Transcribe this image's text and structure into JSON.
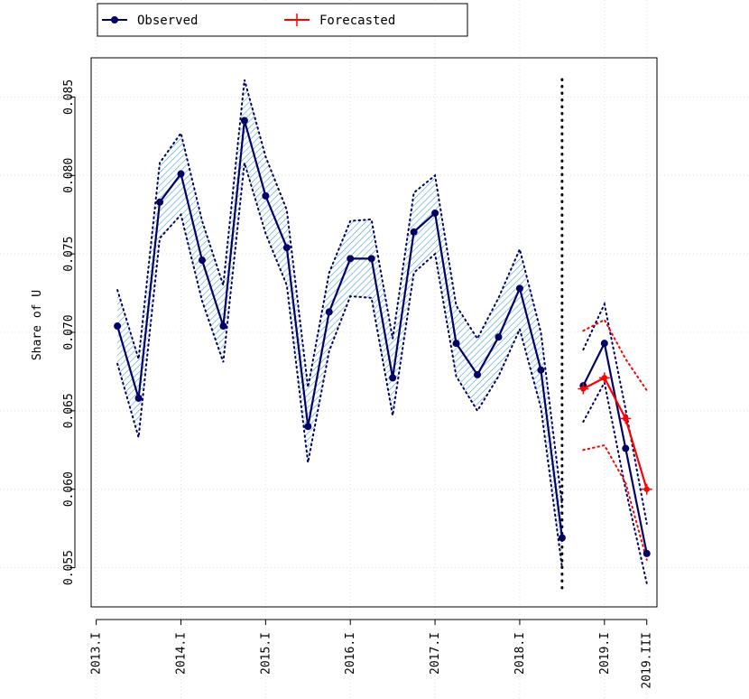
{
  "chart_data": {
    "type": "line",
    "title": "",
    "xlabel": "",
    "ylabel": "Share of U",
    "ylim": [
      0.0525,
      0.0875
    ],
    "xlim": [
      2012.94,
      2019.62
    ],
    "grid": true,
    "legend": {
      "position": "top-left",
      "entries": [
        "Observed",
        "Forecasted"
      ]
    },
    "x_ticks": [
      {
        "x": 2013.0,
        "label": "2013.I"
      },
      {
        "x": 2014.0,
        "label": "2014.I"
      },
      {
        "x": 2015.0,
        "label": "2015.I"
      },
      {
        "x": 2016.0,
        "label": "2016.I"
      },
      {
        "x": 2017.0,
        "label": "2017.I"
      },
      {
        "x": 2018.0,
        "label": "2018.I"
      },
      {
        "x": 2019.0,
        "label": "2019.I"
      },
      {
        "x": 2019.5,
        "label": "2019.III"
      }
    ],
    "y_ticks": [
      {
        "y": 0.055,
        "label": "0.055"
      },
      {
        "y": 0.06,
        "label": "0.060"
      },
      {
        "y": 0.065,
        "label": "0.065"
      },
      {
        "y": 0.07,
        "label": "0.070"
      },
      {
        "y": 0.075,
        "label": "0.075"
      },
      {
        "y": 0.08,
        "label": "0.080"
      },
      {
        "y": 0.085,
        "label": "0.085"
      }
    ],
    "forecast_start_x": 2018.5,
    "series": [
      {
        "name": "Observed",
        "color": "#000066",
        "segment": "history",
        "x": [
          2013.25,
          2013.5,
          2013.75,
          2014.0,
          2014.25,
          2014.5,
          2014.75,
          2015.0,
          2015.25,
          2015.5,
          2015.75,
          2016.0,
          2016.25,
          2016.5,
          2016.75,
          2017.0,
          2017.25,
          2017.5,
          2017.75,
          2018.0,
          2018.25,
          2018.5
        ],
        "y": [
          0.0704,
          0.0658,
          0.0783,
          0.0801,
          0.0746,
          0.0704,
          0.0835,
          0.0787,
          0.0754,
          0.064,
          0.0713,
          0.0747,
          0.0747,
          0.0671,
          0.0764,
          0.0776,
          0.0693,
          0.0673,
          0.0697,
          0.0728,
          0.0676,
          0.0569
        ],
        "band_lower": [
          0.068,
          0.0633,
          0.076,
          0.0775,
          0.072,
          0.0681,
          0.0808,
          0.0763,
          0.073,
          0.0617,
          0.0688,
          0.0723,
          0.0722,
          0.0647,
          0.0738,
          0.075,
          0.0672,
          0.065,
          0.0672,
          0.0702,
          0.0652,
          0.055
        ],
        "band_upper": [
          0.0727,
          0.0683,
          0.0808,
          0.0827,
          0.0771,
          0.073,
          0.0861,
          0.0812,
          0.0778,
          0.0665,
          0.0738,
          0.0771,
          0.0772,
          0.0696,
          0.0789,
          0.08,
          0.0717,
          0.0696,
          0.0722,
          0.0753,
          0.07,
          0.059
        ]
      },
      {
        "name": "Observed",
        "color": "#000066",
        "segment": "holdout",
        "x": [
          2018.75,
          2019.0,
          2019.25,
          2019.5
        ],
        "y": [
          0.0666,
          0.0693,
          0.0626,
          0.0559
        ],
        "band_lower": [
          0.0643,
          0.0668,
          0.06,
          0.054
        ],
        "band_upper": [
          0.0689,
          0.0718,
          0.0651,
          0.0578
        ]
      },
      {
        "name": "Forecasted",
        "color": "#ff0000",
        "x": [
          2018.75,
          2019.0,
          2019.25,
          2019.5
        ],
        "y": [
          0.0664,
          0.0671,
          0.0645,
          0.06
        ],
        "band_lower": [
          0.0625,
          0.0628,
          0.0604,
          0.0555
        ],
        "band_upper": [
          0.0701,
          0.0708,
          0.0683,
          0.0663
        ]
      }
    ]
  }
}
